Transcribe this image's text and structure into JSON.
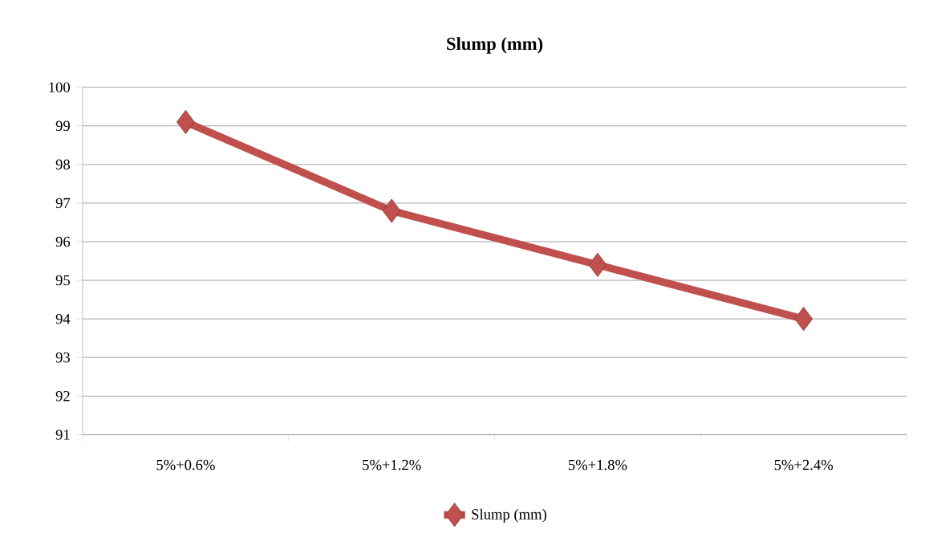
{
  "chart_data": {
    "type": "line",
    "title": "Slump (mm)",
    "categories": [
      "5%+0.6%",
      "5%+1.2%",
      "5%+1.8%",
      "5%+2.4%"
    ],
    "series": [
      {
        "name": "Slump (mm)",
        "color": "#c0504d",
        "values": [
          99.1,
          96.8,
          95.4,
          94.0
        ]
      }
    ],
    "ylim": [
      91,
      100
    ],
    "yticks": [
      91,
      92,
      93,
      94,
      95,
      96,
      97,
      98,
      99,
      100
    ],
    "grid": "y",
    "legend": "bottom",
    "marker": "diamond",
    "line_style": "solid"
  }
}
